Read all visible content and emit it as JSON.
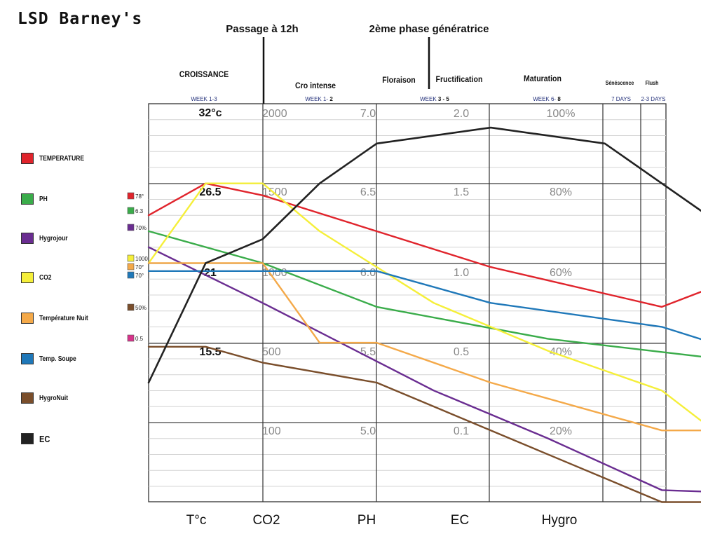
{
  "title": "LSD Barney's",
  "annotations": {
    "passage": "Passage à 12h",
    "phase2": "2ème phase génératrice"
  },
  "phases": [
    {
      "name": "CROISSANCE",
      "week": "WEEK 1-3",
      "week_bold": ""
    },
    {
      "name": "Cro intense",
      "week": "WEEK 1- ",
      "week_bold": "2"
    },
    {
      "name": "Floraison",
      "week": "",
      "week_bold": ""
    },
    {
      "name": "Fructification",
      "week": "WEEK ",
      "week_bold": "3 - 5"
    },
    {
      "name": "Maturation",
      "week": "WEEK 6- ",
      "week_bold": "8"
    },
    {
      "name": "Sénéscence",
      "week": "7 DAYS",
      "week_bold": ""
    },
    {
      "name": "Flush",
      "week": "2-3 DAYS",
      "week_bold": ""
    }
  ],
  "legend": [
    {
      "label": "TEMPERATURE",
      "color": "#e0242c"
    },
    {
      "label": "PH",
      "color": "#3aac4a"
    },
    {
      "label": "Hygrojour",
      "color": "#6a2d91"
    },
    {
      "label": "CO2",
      "color": "#f5ef3a"
    },
    {
      "label": "Température Nuit",
      "color": "#f4a949"
    },
    {
      "label": "Temp. Soupe",
      "color": "#1f78b9"
    },
    {
      "label": "HygroNuit",
      "color": "#7a4e2b"
    },
    {
      "label": "EC",
      "color": "#222222"
    }
  ],
  "start_markers": [
    {
      "label": "78°",
      "color": "#e0242c"
    },
    {
      "label": "6.3",
      "color": "#3aac4a"
    },
    {
      "label": "70%",
      "color": "#6a2d91"
    },
    {
      "label": "1000",
      "color": "#f5ef3a"
    },
    {
      "label": "70°",
      "color": "#f4a949"
    },
    {
      "label": "70°",
      "color": "#1f78b9"
    },
    {
      "label": "50%",
      "color": "#7a4e2b"
    },
    {
      "label": "0.5",
      "color": "#d6338a"
    }
  ],
  "chart_data": {
    "type": "line",
    "axes": [
      {
        "name": "T°c",
        "ticks": [
          "32°c",
          "26.5",
          "21",
          "15.5"
        ]
      },
      {
        "name": "CO2",
        "ticks": [
          "2000",
          "1500",
          "1000",
          "500",
          "100"
        ]
      },
      {
        "name": "PH",
        "ticks": [
          "7.0",
          "6.5",
          "6.0",
          "5.5",
          "5.0"
        ]
      },
      {
        "name": "EC",
        "ticks": [
          "2.0",
          "1.5",
          "1.0",
          "0.5",
          "0.1"
        ]
      },
      {
        "name": "Hygro",
        "ticks": [
          "100%",
          "80%",
          "60%",
          "40%",
          "20%"
        ]
      }
    ],
    "series": [
      {
        "name": "TEMPERATURE",
        "color": "#e0242c",
        "points": [
          [
            0,
            1.4
          ],
          [
            0.5,
            1.0
          ],
          [
            1,
            1.15
          ],
          [
            3,
            2.05
          ],
          [
            4.5,
            2.55
          ],
          [
            5.5,
            2.0
          ],
          [
            6.7,
            4.2
          ]
        ]
      },
      {
        "name": "PH",
        "color": "#3aac4a",
        "points": [
          [
            0,
            1.6
          ],
          [
            1,
            2.0
          ],
          [
            2,
            2.55
          ],
          [
            3.5,
            2.95
          ],
          [
            5,
            3.2
          ],
          [
            6,
            3.7
          ],
          [
            6.7,
            3.7
          ]
        ]
      },
      {
        "name": "Hygrojour",
        "color": "#6a2d91",
        "points": [
          [
            0,
            1.8
          ],
          [
            1,
            2.5
          ],
          [
            2.5,
            3.6
          ],
          [
            3.5,
            4.2
          ],
          [
            4.5,
            4.85
          ],
          [
            5.5,
            4.9
          ],
          [
            6.7,
            5.0
          ]
        ]
      },
      {
        "name": "CO2",
        "color": "#f5ef3a",
        "points": [
          [
            0,
            2.0
          ],
          [
            0.25,
            1.5
          ],
          [
            0.5,
            1.0
          ],
          [
            1,
            1.0
          ],
          [
            1.5,
            1.6
          ],
          [
            2.5,
            2.5
          ],
          [
            3.5,
            3.1
          ],
          [
            4.5,
            3.6
          ],
          [
            5.5,
            4.7
          ],
          [
            6.7,
            4.7
          ]
        ]
      },
      {
        "name": "Température Nuit",
        "color": "#f4a949",
        "points": [
          [
            0,
            2.0
          ],
          [
            1,
            2.0
          ],
          [
            1.5,
            3.0
          ],
          [
            2,
            3.0
          ],
          [
            3,
            3.5
          ],
          [
            4.5,
            4.1
          ],
          [
            5.5,
            4.1
          ],
          [
            6.7,
            5.0
          ]
        ]
      },
      {
        "name": "Temp. Soupe",
        "color": "#1f78b9",
        "points": [
          [
            0,
            2.1
          ],
          [
            1,
            2.1
          ],
          [
            2,
            2.1
          ],
          [
            3,
            2.5
          ],
          [
            4.5,
            2.8
          ],
          [
            5.5,
            3.25
          ],
          [
            6.7,
            3.7
          ]
        ]
      },
      {
        "name": "HygroNuit",
        "color": "#7a4e2b",
        "points": [
          [
            0,
            3.05
          ],
          [
            0.5,
            3.05
          ],
          [
            1,
            3.25
          ],
          [
            2,
            3.5
          ],
          [
            3.5,
            4.4
          ],
          [
            4.5,
            5.0
          ],
          [
            5.5,
            5.0
          ],
          [
            6.7,
            5.5
          ]
        ]
      },
      {
        "name": "EC",
        "color": "#222222",
        "points": [
          [
            0,
            3.5
          ],
          [
            0.5,
            2.0
          ],
          [
            1,
            1.7
          ],
          [
            1.5,
            1.0
          ],
          [
            2,
            0.5
          ],
          [
            3,
            0.3
          ],
          [
            4,
            0.5
          ],
          [
            4.5,
            1.0
          ],
          [
            5.5,
            2.0
          ],
          [
            6.2,
            5.0
          ]
        ]
      }
    ]
  }
}
